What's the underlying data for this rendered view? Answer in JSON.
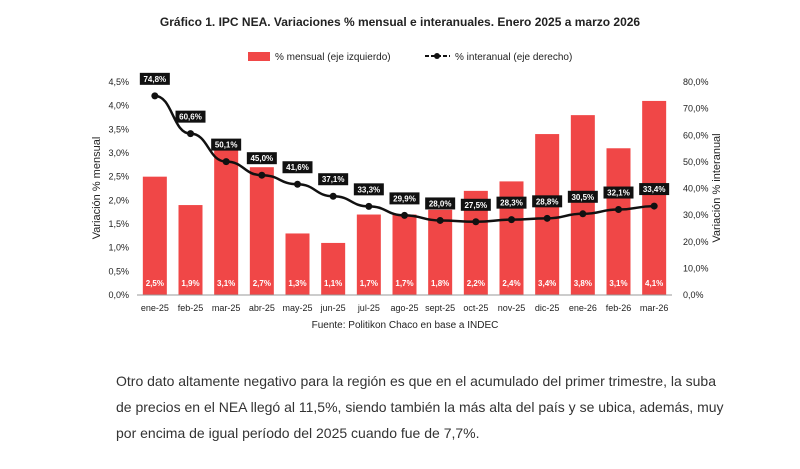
{
  "chart_data": {
    "type": "bar+line",
    "title": "Gráfico 1. IPC NEA. Variaciones % mensual e interanuales. Enero 2025 a marzo 2026",
    "categories": [
      "ene-25",
      "feb-25",
      "mar-25",
      "abr-25",
      "may-25",
      "jun-25",
      "jul-25",
      "ago-25",
      "sept-25",
      "oct-25",
      "nov-25",
      "dic-25",
      "ene-26",
      "feb-26",
      "mar-26"
    ],
    "series": [
      {
        "name": "% mensual (eje izquierdo)",
        "kind": "bar",
        "axis": "left",
        "color": "#f04747",
        "values": [
          2.5,
          1.9,
          3.1,
          2.7,
          1.3,
          1.1,
          1.7,
          1.7,
          1.8,
          2.2,
          2.4,
          3.4,
          3.8,
          3.1,
          4.1
        ],
        "labels": [
          "2,5%",
          "1,9%",
          "3,1%",
          "2,7%",
          "1,3%",
          "1,1%",
          "1,7%",
          "1,7%",
          "1,8%",
          "2,2%",
          "2,4%",
          "3,4%",
          "3,8%",
          "3,1%",
          "4,1%"
        ]
      },
      {
        "name": "% interanual (eje derecho)",
        "kind": "line",
        "axis": "right",
        "color": "#111111",
        "values": [
          74.8,
          60.6,
          50.1,
          45.0,
          41.6,
          37.1,
          33.3,
          29.9,
          28.0,
          27.5,
          28.3,
          28.8,
          30.5,
          32.1,
          33.4
        ],
        "labels": [
          "74,8%",
          "60,6%",
          "50,1%",
          "45,0%",
          "41,6%",
          "37,1%",
          "33,3%",
          "29,9%",
          "28,0%",
          "27,5%",
          "28,3%",
          "28,8%",
          "30,5%",
          "32,1%",
          "33,4%"
        ]
      }
    ],
    "ylabel_left": "Variación % mensual",
    "ylabel_right": "Variación % interanual",
    "ylim_left": [
      0,
      4.5
    ],
    "ylim_right": [
      0,
      80
    ],
    "yticks_left": [
      "0,0%",
      "0,5%",
      "1,0%",
      "1,5%",
      "2,0%",
      "2,5%",
      "3,0%",
      "3,5%",
      "4,0%",
      "4,5%"
    ],
    "yticks_right": [
      "0,0%",
      "10,0%",
      "20,0%",
      "30,0%",
      "40,0%",
      "50,0%",
      "60,0%",
      "70,0%",
      "80,0%"
    ],
    "grid": false,
    "legend_position": "top-center",
    "source": "Fuente: Politikon Chaco en base a INDEC"
  },
  "paragraph": "Otro dato altamente negativo para la región es que en el acumulado del primer trimestre, la suba de precios en el NEA llegó al 11,5%, siendo también la más alta del país y se ubica, además, muy por encima de igual período del 2025 cuando fue de 7,7%."
}
